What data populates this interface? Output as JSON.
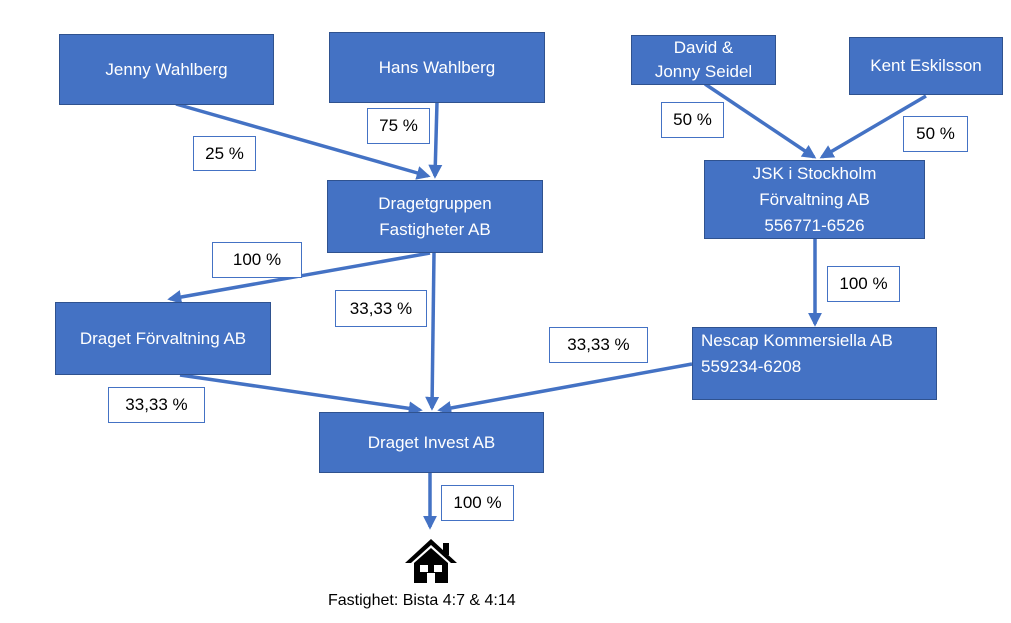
{
  "colors": {
    "box_fill": "#4472c4",
    "box_border": "#2f528f",
    "arrow": "#4472c4",
    "label_border": "#4472c4"
  },
  "entities": {
    "jenny": "Jenny Wahlberg",
    "hans": "Hans Wahlberg",
    "david_line1": "David &",
    "david_line2": "Jonny Seidel",
    "kent": "Kent Eskilsson",
    "dragetgruppen_line1": "Dragetgruppen",
    "dragetgruppen_line2": "Fastigheter AB",
    "jsk_line1": "JSK i Stockholm",
    "jsk_line2": "Förvaltning AB",
    "jsk_line3": "556771-6526",
    "draget_forvaltning": "Draget Förvaltning AB",
    "nescap_line1": "Nescap Kommersiella AB",
    "nescap_line2": "559234-6208",
    "draget_invest": "Draget Invest AB"
  },
  "ownership": {
    "jenny_to_dragetgruppen": "25 %",
    "hans_to_dragetgruppen": "75 %",
    "david_to_jsk": "50 %",
    "kent_to_jsk": "50 %",
    "dragetgruppen_to_forvaltning": "100 %",
    "dragetgruppen_to_invest": "33,33 %",
    "jsk_to_nescap": "100 %",
    "nescap_to_invest": "33,33 %",
    "forvaltning_to_invest": "33,33 %",
    "invest_to_property": "100 %"
  },
  "property": {
    "icon": "house-icon",
    "caption": "Fastighet: Bista 4:7 & 4:14"
  }
}
